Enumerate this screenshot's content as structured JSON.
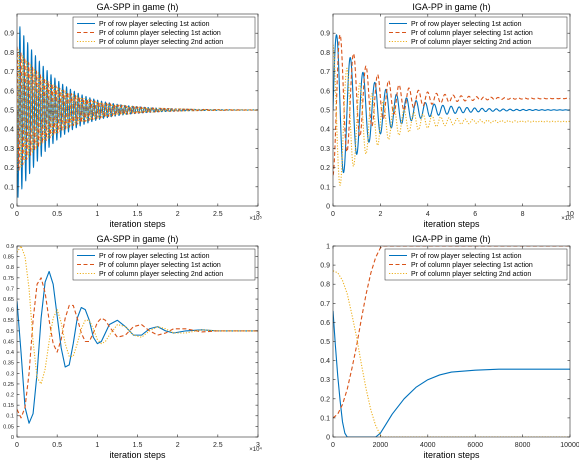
{
  "colors": {
    "row": "#0072BD",
    "col1": "#D95319",
    "col2": "#EDB120",
    "axis": "#262626",
    "legend_border": "#262626"
  },
  "chart_data": [
    {
      "id": "tl",
      "type": "line",
      "title": "GA-SPP in game (h)",
      "xlabel": "iteration steps",
      "ylabel": "",
      "x_exponent": "×10⁵",
      "xlim": [
        0,
        3
      ],
      "ylim": [
        0,
        1
      ],
      "xticks": [
        0,
        0.5,
        1,
        1.5,
        2,
        2.5,
        3
      ],
      "xtick_labels": [
        "0",
        "0.5",
        "1",
        "1.5",
        "2",
        "2.5",
        "3"
      ],
      "yticks": [
        0,
        0.1,
        0.2,
        0.3,
        0.4,
        0.5,
        0.6,
        0.7,
        0.8,
        0.9
      ],
      "ytick_labels": [
        "0",
        "0.1",
        "0.2",
        "0.3",
        "0.4",
        "0.5",
        "0.6",
        "0.7",
        "0.8",
        "0.9"
      ],
      "legend_position": "top-right",
      "series": [
        {
          "name": "Pr of row player selecting 1st action",
          "style": "solid",
          "color_key": "row",
          "model": {
            "kind": "dense_osc",
            "equilibrium": 0.5,
            "amplitude_start": 0.47,
            "decay_per_unit": 2.2,
            "cycles": 62,
            "phase": 1.5708
          }
        },
        {
          "name": "Pr of column player selecting 1st action",
          "style": "dashed",
          "color_key": "col1",
          "model": {
            "kind": "dense_osc",
            "equilibrium": 0.5,
            "amplitude_start": 0.33,
            "decay_per_unit": 2.0,
            "cycles": 62,
            "phase": 0
          }
        },
        {
          "name": "Pr of column player selecting 2nd action",
          "style": "dotted",
          "color_key": "col2",
          "model": {
            "kind": "dense_osc",
            "equilibrium": 0.5,
            "amplitude_start": 0.33,
            "decay_per_unit": 2.0,
            "cycles": 62,
            "phase": 3.1416
          }
        }
      ]
    },
    {
      "id": "tr",
      "type": "line",
      "title": "IGA-PP in game (h)",
      "xlabel": "iteration steps",
      "ylabel": "",
      "x_exponent": "×10⁴",
      "xlim": [
        0,
        10
      ],
      "ylim": [
        0,
        1
      ],
      "xticks": [
        0,
        2,
        4,
        6,
        8,
        10
      ],
      "xtick_labels": [
        "0",
        "2",
        "4",
        "6",
        "8",
        "10"
      ],
      "yticks": [
        0,
        0.1,
        0.2,
        0.3,
        0.4,
        0.5,
        0.6,
        0.7,
        0.8,
        0.9
      ],
      "ytick_labels": [
        "0",
        "0.1",
        "0.2",
        "0.3",
        "0.4",
        "0.5",
        "0.6",
        "0.7",
        "0.8",
        "0.9"
      ],
      "legend_position": "top-right",
      "series": [
        {
          "name": "Pr of row player selecting 1st action",
          "style": "solid",
          "color_key": "row",
          "model": {
            "kind": "osc",
            "equilibrium": 0.5,
            "amplitude_start": 0.43,
            "decay_per_unit": 0.62,
            "period": 0.62,
            "phase": -1.5708,
            "x_start": 0
          }
        },
        {
          "name": "Pr of column player selecting 1st action",
          "style": "dashed",
          "color_key": "col1",
          "model": {
            "kind": "osc",
            "equilibrium": 0.56,
            "amplitude_start": 0.4,
            "decay_per_unit": 0.62,
            "period": 0.62,
            "phase": 3.1416,
            "x_start": 0
          }
        },
        {
          "name": "Pr of column player selcting 2nd action",
          "style": "dotted",
          "color_key": "col2",
          "model": {
            "kind": "osc",
            "equilibrium": 0.44,
            "amplitude_start": 0.4,
            "decay_per_unit": 0.62,
            "period": 0.62,
            "phase": 0,
            "x_start": 0
          }
        }
      ]
    },
    {
      "id": "bl",
      "type": "line",
      "title": "GA-SPP in game (h)",
      "xlabel": "iteration steps",
      "ylabel": "",
      "x_exponent": "×10⁴",
      "xlim": [
        0,
        3
      ],
      "ylim": [
        0,
        0.9
      ],
      "xticks": [
        0,
        0.5,
        1,
        1.5,
        2,
        2.5,
        3
      ],
      "xtick_labels": [
        "0",
        "0.5",
        "1",
        "1.5",
        "2",
        "2.5",
        "3"
      ],
      "yticks": [
        0,
        0.05,
        0.1,
        0.15,
        0.2,
        0.25,
        0.3,
        0.35,
        0.4,
        0.45,
        0.5,
        0.55,
        0.6,
        0.65,
        0.7,
        0.75,
        0.8,
        0.85,
        0.9
      ],
      "ytick_labels": [
        "0",
        "0.05",
        "0.1",
        "0.15",
        "0.2",
        "0.25",
        "0.3",
        "0.35",
        "0.4",
        "0.45",
        "0.5",
        "0.55",
        "0.6",
        "0.65",
        "0.7",
        "0.75",
        "0.8",
        "0.85",
        "0.9"
      ],
      "legend_position": "top-right",
      "series": [
        {
          "name": "Pr of row player selecting 1st action",
          "style": "solid",
          "color_key": "row",
          "points": [
            [
              0,
              0.64
            ],
            [
              0.05,
              0.4
            ],
            [
              0.1,
              0.14
            ],
            [
              0.15,
              0.065
            ],
            [
              0.2,
              0.11
            ],
            [
              0.25,
              0.3
            ],
            [
              0.3,
              0.56
            ],
            [
              0.35,
              0.73
            ],
            [
              0.4,
              0.78
            ],
            [
              0.45,
              0.72
            ],
            [
              0.5,
              0.57
            ],
            [
              0.55,
              0.42
            ],
            [
              0.6,
              0.33
            ],
            [
              0.65,
              0.34
            ],
            [
              0.7,
              0.44
            ],
            [
              0.75,
              0.56
            ],
            [
              0.8,
              0.61
            ],
            [
              0.85,
              0.6
            ],
            [
              0.9,
              0.55
            ],
            [
              0.95,
              0.47
            ],
            [
              1.0,
              0.44
            ],
            [
              1.05,
              0.45
            ],
            [
              1.1,
              0.49
            ],
            [
              1.15,
              0.53
            ],
            [
              1.25,
              0.55
            ],
            [
              1.35,
              0.52
            ],
            [
              1.45,
              0.48
            ],
            [
              1.55,
              0.48
            ],
            [
              1.65,
              0.51
            ],
            [
              1.75,
              0.52
            ],
            [
              1.85,
              0.5
            ],
            [
              1.95,
              0.49
            ],
            [
              2.1,
              0.5
            ],
            [
              2.3,
              0.505
            ],
            [
              2.5,
              0.5
            ],
            [
              3.0,
              0.5
            ]
          ]
        },
        {
          "name": "Pr of column player selecting 1st action",
          "style": "dashed",
          "color_key": "col1",
          "points": [
            [
              0,
              0.13
            ],
            [
              0.05,
              0.09
            ],
            [
              0.1,
              0.14
            ],
            [
              0.15,
              0.3
            ],
            [
              0.2,
              0.55
            ],
            [
              0.25,
              0.72
            ],
            [
              0.3,
              0.75
            ],
            [
              0.35,
              0.68
            ],
            [
              0.4,
              0.55
            ],
            [
              0.45,
              0.44
            ],
            [
              0.5,
              0.4
            ],
            [
              0.55,
              0.46
            ],
            [
              0.6,
              0.56
            ],
            [
              0.65,
              0.62
            ],
            [
              0.7,
              0.62
            ],
            [
              0.75,
              0.56
            ],
            [
              0.8,
              0.49
            ],
            [
              0.85,
              0.45
            ],
            [
              0.9,
              0.45
            ],
            [
              0.95,
              0.49
            ],
            [
              1.0,
              0.54
            ],
            [
              1.05,
              0.56
            ],
            [
              1.1,
              0.55
            ],
            [
              1.15,
              0.52
            ],
            [
              1.25,
              0.47
            ],
            [
              1.35,
              0.48
            ],
            [
              1.45,
              0.52
            ],
            [
              1.55,
              0.53
            ],
            [
              1.65,
              0.5
            ],
            [
              1.75,
              0.48
            ],
            [
              1.85,
              0.49
            ],
            [
              1.95,
              0.51
            ],
            [
              2.1,
              0.51
            ],
            [
              2.3,
              0.495
            ],
            [
              2.5,
              0.5
            ],
            [
              3.0,
              0.5
            ]
          ]
        },
        {
          "name": "Pr of column player selecting 2nd action",
          "style": "dotted",
          "color_key": "col2",
          "points": [
            [
              0,
              0.87
            ],
            [
              0.05,
              0.9
            ],
            [
              0.1,
              0.85
            ],
            [
              0.15,
              0.7
            ],
            [
              0.2,
              0.45
            ],
            [
              0.25,
              0.28
            ],
            [
              0.3,
              0.25
            ],
            [
              0.35,
              0.32
            ],
            [
              0.4,
              0.45
            ],
            [
              0.45,
              0.56
            ],
            [
              0.5,
              0.6
            ],
            [
              0.55,
              0.54
            ],
            [
              0.6,
              0.44
            ],
            [
              0.65,
              0.38
            ],
            [
              0.7,
              0.38
            ],
            [
              0.75,
              0.44
            ],
            [
              0.8,
              0.51
            ],
            [
              0.85,
              0.55
            ],
            [
              0.9,
              0.55
            ],
            [
              0.95,
              0.51
            ],
            [
              1.0,
              0.46
            ],
            [
              1.05,
              0.44
            ],
            [
              1.1,
              0.45
            ],
            [
              1.15,
              0.48
            ],
            [
              1.25,
              0.53
            ],
            [
              1.35,
              0.52
            ],
            [
              1.45,
              0.48
            ],
            [
              1.55,
              0.47
            ],
            [
              1.65,
              0.5
            ],
            [
              1.75,
              0.52
            ],
            [
              1.85,
              0.51
            ],
            [
              1.95,
              0.49
            ],
            [
              2.1,
              0.49
            ],
            [
              2.3,
              0.505
            ],
            [
              2.5,
              0.5
            ],
            [
              3.0,
              0.5
            ]
          ]
        }
      ]
    },
    {
      "id": "br",
      "type": "line",
      "title": "IGA-PP in game (h)",
      "xlabel": "iteration steps",
      "ylabel": "",
      "x_exponent": "",
      "xlim": [
        0,
        10000
      ],
      "ylim": [
        0,
        1
      ],
      "xticks": [
        0,
        2000,
        4000,
        6000,
        8000,
        10000
      ],
      "xtick_labels": [
        "0",
        "2000",
        "4000",
        "6000",
        "8000",
        "10000"
      ],
      "yticks": [
        0,
        0.1,
        0.2,
        0.3,
        0.4,
        0.5,
        0.6,
        0.7,
        0.8,
        0.9,
        1
      ],
      "ytick_labels": [
        "0",
        "0.1",
        "0.2",
        "0.3",
        "0.4",
        "0.5",
        "0.6",
        "0.7",
        "0.8",
        "0.9",
        "1"
      ],
      "legend_position": "top-right",
      "series": [
        {
          "name": "Pr of row player selecting 1st action",
          "style": "solid",
          "color_key": "row",
          "points": [
            [
              0,
              0.66
            ],
            [
              100,
              0.48
            ],
            [
              200,
              0.32
            ],
            [
              300,
              0.19
            ],
            [
              400,
              0.08
            ],
            [
              500,
              0.02
            ],
            [
              600,
              0
            ],
            [
              1800,
              0
            ],
            [
              2000,
              0.02
            ],
            [
              2200,
              0.06
            ],
            [
              2500,
              0.12
            ],
            [
              3000,
              0.2
            ],
            [
              3500,
              0.26
            ],
            [
              4000,
              0.3
            ],
            [
              4500,
              0.325
            ],
            [
              5000,
              0.34
            ],
            [
              6000,
              0.35
            ],
            [
              7000,
              0.355
            ],
            [
              8000,
              0.355
            ],
            [
              10000,
              0.355
            ]
          ]
        },
        {
          "name": "Pr of column player selecting 1st action",
          "style": "dashed",
          "color_key": "col1",
          "points": [
            [
              0,
              0.1
            ],
            [
              200,
              0.12
            ],
            [
              400,
              0.17
            ],
            [
              600,
              0.25
            ],
            [
              800,
              0.36
            ],
            [
              1000,
              0.48
            ],
            [
              1200,
              0.62
            ],
            [
              1400,
              0.75
            ],
            [
              1600,
              0.86
            ],
            [
              1800,
              0.94
            ],
            [
              2000,
              0.99
            ],
            [
              2100,
              1
            ],
            [
              10000,
              1
            ]
          ]
        },
        {
          "name": "Pr of column player selcting 2nd action",
          "style": "dotted",
          "color_key": "col2",
          "points": [
            [
              0,
              0.87
            ],
            [
              200,
              0.86
            ],
            [
              400,
              0.82
            ],
            [
              600,
              0.75
            ],
            [
              800,
              0.64
            ],
            [
              1000,
              0.52
            ],
            [
              1200,
              0.38
            ],
            [
              1400,
              0.25
            ],
            [
              1600,
              0.14
            ],
            [
              1800,
              0.06
            ],
            [
              2000,
              0.01
            ],
            [
              2100,
              0
            ],
            [
              10000,
              0
            ]
          ]
        }
      ]
    }
  ]
}
